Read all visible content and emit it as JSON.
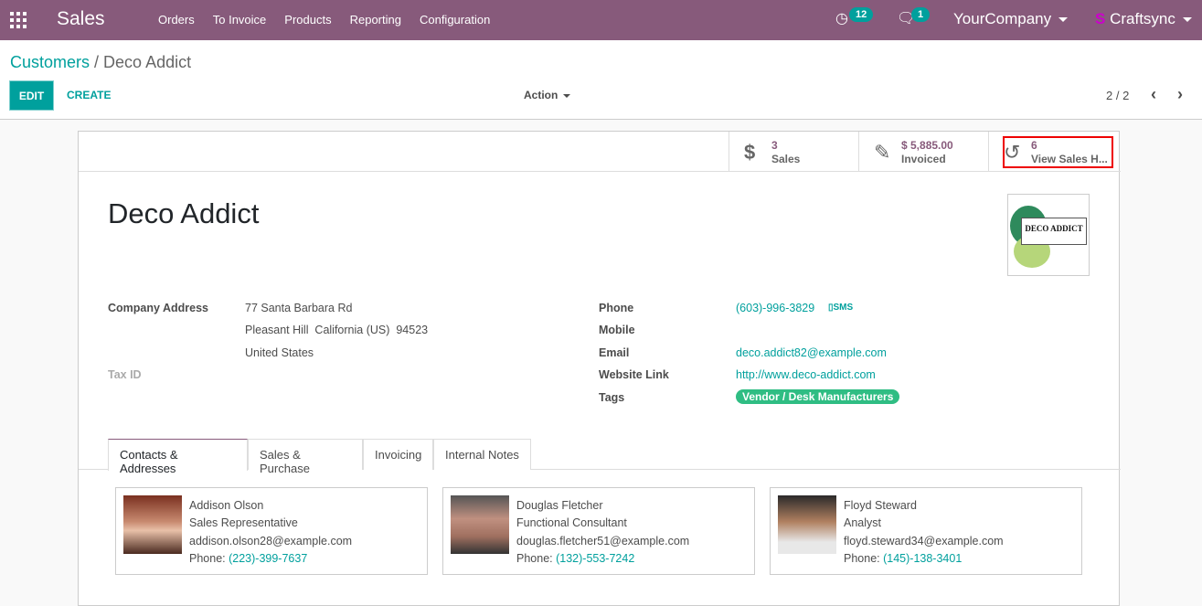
{
  "nav": {
    "app": "Sales",
    "menu": [
      "Orders",
      "To Invoice",
      "Products",
      "Reporting",
      "Configuration"
    ],
    "activity_count": "12",
    "message_count": "1",
    "company": "YourCompany",
    "user": "Craftsync",
    "brand_color": "#875A7B"
  },
  "control": {
    "breadcrumb_parent": "Customers",
    "breadcrumb_current": "Deco Addict",
    "edit": "EDIT",
    "create": "CREATE",
    "action": "Action",
    "pager": "2 / 2"
  },
  "stats": [
    {
      "icon": "dollar-icon",
      "value": "3",
      "label": "Sales"
    },
    {
      "icon": "edit-icon",
      "value": "$ 5,885.00",
      "label": "Invoiced"
    },
    {
      "icon": "history-icon",
      "value": "6",
      "label": "View Sales H..."
    }
  ],
  "partner": {
    "name": "Deco Addict",
    "logo_text": "DECO ADDICT",
    "company_address_label": "Company Address",
    "address_line1": "77 Santa Barbara Rd",
    "address_line2": "Pleasant Hill  California (US)  94523",
    "address_line3": "United States",
    "tax_id_label": "Tax ID",
    "phone_label": "Phone",
    "phone": "(603)-996-3829",
    "sms": "SMS",
    "mobile_label": "Mobile",
    "email_label": "Email",
    "email": "deco.addict82@example.com",
    "website_label": "Website Link",
    "website": "http://www.deco-addict.com",
    "tags_label": "Tags",
    "tag": "Vendor / Desk Manufacturers"
  },
  "tabs": [
    "Contacts & Addresses",
    "Sales & Purchase",
    "Invoicing",
    "Internal Notes"
  ],
  "contacts": [
    {
      "name": "Addison Olson",
      "role": "Sales Representative",
      "email": "addison.olson28@example.com",
      "phone_label": "Phone:",
      "phone": "(223)-399-7637"
    },
    {
      "name": "Douglas Fletcher",
      "role": "Functional Consultant",
      "email": "douglas.fletcher51@example.com",
      "phone_label": "Phone:",
      "phone": "(132)-553-7242"
    },
    {
      "name": "Floyd Steward",
      "role": "Analyst",
      "email": "floyd.steward34@example.com",
      "phone_label": "Phone:",
      "phone": "(145)-138-3401"
    }
  ]
}
